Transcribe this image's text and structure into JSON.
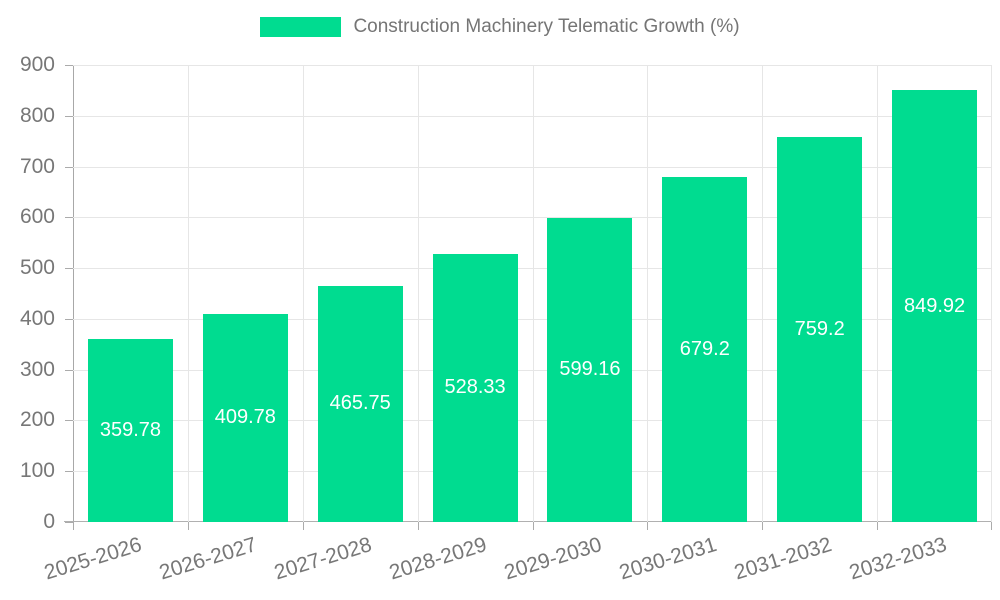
{
  "legend": {
    "label": "Construction Machinery Telematic Growth (%)",
    "swatch_color": "#00dc90"
  },
  "chart_data": {
    "type": "bar",
    "title": "Construction Machinery Telematic Growth (%)",
    "categories": [
      "2025-2026",
      "2026-2027",
      "2027-2028",
      "2028-2029",
      "2029-2030",
      "2030-2031",
      "2031-2032",
      "2032-2033"
    ],
    "series": [
      {
        "name": "Construction Machinery Telematic Growth (%)",
        "values": [
          359.78,
          409.78,
          465.75,
          528.33,
          599.16,
          679.2,
          759.2,
          849.92
        ],
        "value_labels": [
          "359.78",
          "409.78",
          "465.75",
          "528.33",
          "599.16",
          "679.2",
          "759.2",
          "849.92"
        ]
      }
    ],
    "xlabel": "",
    "ylabel": "",
    "ylim": [
      0,
      900
    ],
    "yticks": [
      0,
      100,
      200,
      300,
      400,
      500,
      600,
      700,
      800,
      900
    ],
    "grid": true,
    "legend_position": "top",
    "bar_color": "#00dc90",
    "bar_label_color": "#ffffff",
    "bar_width_fraction": 0.74
  }
}
